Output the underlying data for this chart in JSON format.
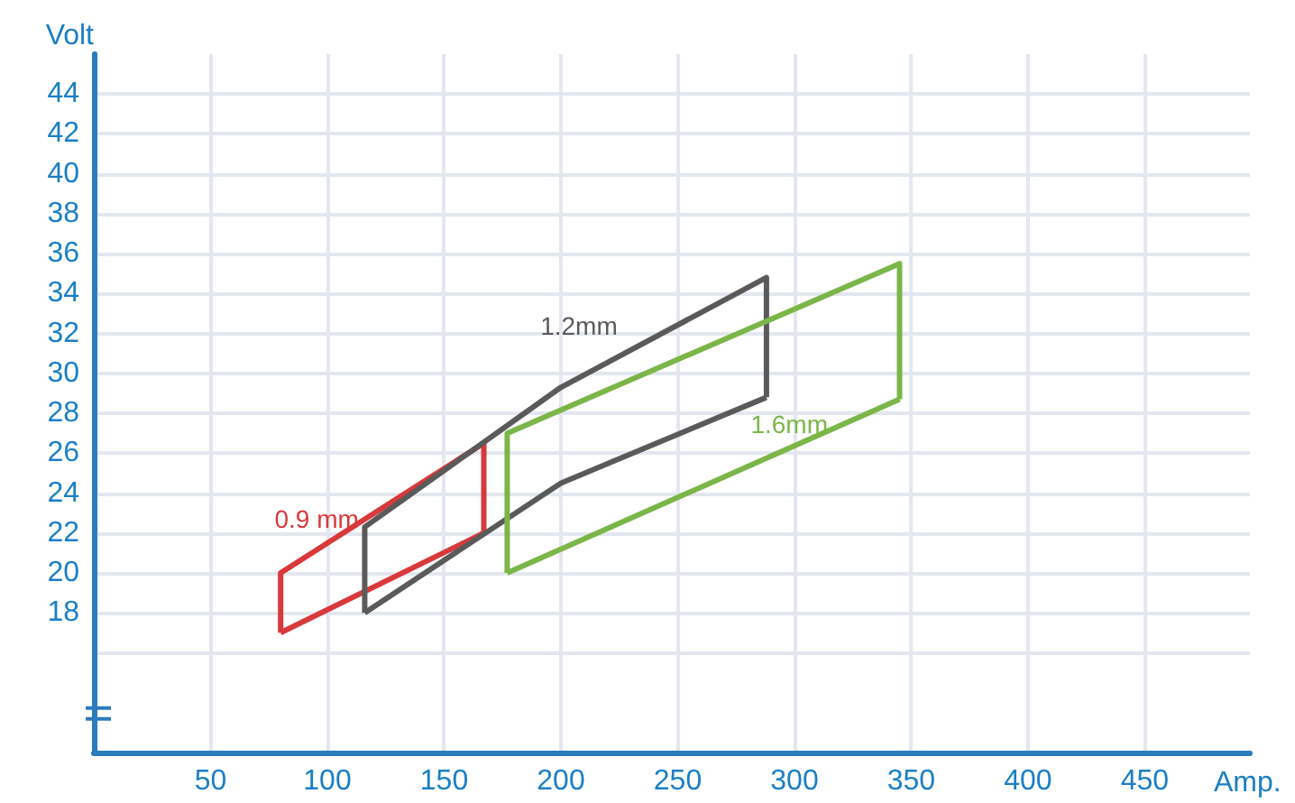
{
  "chart_data": {
    "type": "line",
    "xlabel": "Amp.",
    "ylabel": "Volt",
    "xlim": [
      0,
      495
    ],
    "xticks": [
      50,
      100,
      150,
      200,
      250,
      300,
      350,
      400,
      450
    ],
    "ylim": [
      11,
      46
    ],
    "yticks": [
      {
        "value": 16,
        "label": null
      },
      18,
      20,
      22,
      24,
      26,
      28,
      30,
      32,
      34,
      36,
      38,
      40,
      42,
      44
    ],
    "grid": true,
    "marker": "none",
    "line_style": "solid",
    "legend": false,
    "series": [
      {
        "name": "0.9 mm",
        "color": "#d8393a",
        "x": [
          80,
          80,
          167,
          167
        ],
        "values": [
          17,
          20,
          26.5,
          22
        ]
      },
      {
        "color": "#d8393a",
        "x": [
          80,
          167
        ],
        "values": [
          17,
          22
        ]
      },
      {
        "name": "1.2mm",
        "color": "#5a5a5a",
        "x": [
          116,
          116,
          200,
          288,
          288
        ],
        "values": [
          18,
          22.3,
          29.3,
          34.8,
          28.8
        ]
      },
      {
        "color": "#5a5a5a",
        "x": [
          116,
          200,
          288
        ],
        "values": [
          18,
          24.5,
          28.8
        ]
      },
      {
        "name": "1.6mm",
        "color": "#7ab648",
        "x": [
          177,
          177,
          345,
          345
        ],
        "values": [
          20,
          27,
          35.5,
          28.7
        ]
      },
      {
        "color": "#7ab648",
        "x": [
          177,
          345
        ],
        "values": [
          20,
          28.7
        ]
      }
    ]
  }
}
